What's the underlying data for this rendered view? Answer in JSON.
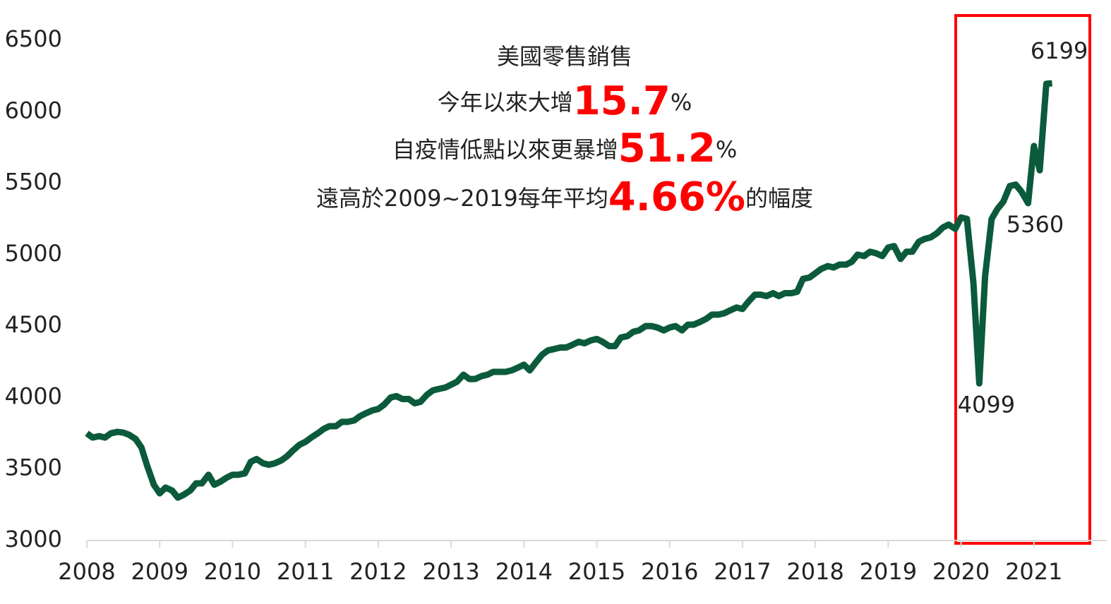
{
  "chart_data": {
    "type": "line",
    "annotation_lines": [
      [
        {
          "text": "美國零售銷售",
          "highlight": false
        }
      ],
      [
        {
          "text": "今年以來大增",
          "highlight": false
        },
        {
          "text": "15.7",
          "highlight": true
        },
        {
          "text": "%",
          "highlight": false
        }
      ],
      [
        {
          "text": "自疫情低點以來更暴增",
          "highlight": false
        },
        {
          "text": "51.2",
          "highlight": true
        },
        {
          "text": "%",
          "highlight": false
        }
      ],
      [
        {
          "text": "遠高於2009~2019每年平均",
          "highlight": false
        },
        {
          "text": "4.66%",
          "highlight": true
        },
        {
          "text": "的幅度",
          "highlight": false
        }
      ]
    ],
    "highlight_color": "#ff0000",
    "x": [
      2008,
      2008.08,
      2008.17,
      2008.25,
      2008.33,
      2008.42,
      2008.5,
      2008.58,
      2008.67,
      2008.75,
      2008.83,
      2008.92,
      2009,
      2009.08,
      2009.17,
      2009.25,
      2009.33,
      2009.42,
      2009.5,
      2009.58,
      2009.67,
      2009.75,
      2009.83,
      2009.92,
      2010,
      2010.08,
      2010.17,
      2010.25,
      2010.33,
      2010.42,
      2010.5,
      2010.58,
      2010.67,
      2010.75,
      2010.83,
      2010.92,
      2011,
      2011.08,
      2011.17,
      2011.25,
      2011.33,
      2011.42,
      2011.5,
      2011.58,
      2011.67,
      2011.75,
      2011.83,
      2011.92,
      2012,
      2012.08,
      2012.17,
      2012.25,
      2012.33,
      2012.42,
      2012.5,
      2012.58,
      2012.67,
      2012.75,
      2012.83,
      2012.92,
      2013,
      2013.08,
      2013.17,
      2013.25,
      2013.33,
      2013.42,
      2013.5,
      2013.58,
      2013.67,
      2013.75,
      2013.83,
      2013.92,
      2014,
      2014.08,
      2014.17,
      2014.25,
      2014.33,
      2014.42,
      2014.5,
      2014.58,
      2014.67,
      2014.75,
      2014.83,
      2014.92,
      2015,
      2015.08,
      2015.17,
      2015.25,
      2015.33,
      2015.42,
      2015.5,
      2015.58,
      2015.67,
      2015.75,
      2015.83,
      2015.92,
      2016,
      2016.08,
      2016.17,
      2016.25,
      2016.33,
      2016.42,
      2016.5,
      2016.58,
      2016.67,
      2016.75,
      2016.83,
      2016.92,
      2017,
      2017.08,
      2017.17,
      2017.25,
      2017.33,
      2017.42,
      2017.5,
      2017.58,
      2017.67,
      2017.75,
      2017.83,
      2017.92,
      2018,
      2018.08,
      2018.17,
      2018.25,
      2018.33,
      2018.42,
      2018.5,
      2018.58,
      2018.67,
      2018.75,
      2018.83,
      2018.92,
      2019,
      2019.08,
      2019.17,
      2019.25,
      2019.33,
      2019.42,
      2019.5,
      2019.58,
      2019.67,
      2019.75,
      2019.83,
      2019.92,
      2020,
      2020.08,
      2020.17,
      2020.25,
      2020.33,
      2020.42,
      2020.5,
      2020.58,
      2020.67,
      2020.75,
      2020.83,
      2020.92,
      2021,
      2021.08,
      2021.17,
      2021.25
    ],
    "series": [
      {
        "color": "#0b5a3b",
        "values": [
          3750,
          3720,
          3730,
          3720,
          3750,
          3760,
          3755,
          3740,
          3710,
          3650,
          3520,
          3390,
          3330,
          3370,
          3350,
          3300,
          3320,
          3350,
          3400,
          3400,
          3460,
          3390,
          3410,
          3440,
          3460,
          3460,
          3470,
          3550,
          3570,
          3540,
          3530,
          3540,
          3560,
          3590,
          3630,
          3670,
          3690,
          3720,
          3750,
          3780,
          3800,
          3800,
          3830,
          3830,
          3840,
          3870,
          3890,
          3910,
          3920,
          3950,
          4000,
          4010,
          3990,
          3990,
          3960,
          3970,
          4020,
          4050,
          4060,
          4070,
          4090,
          4110,
          4160,
          4130,
          4130,
          4150,
          4160,
          4180,
          4180,
          4180,
          4190,
          4210,
          4230,
          4190,
          4250,
          4300,
          4330,
          4340,
          4350,
          4350,
          4370,
          4390,
          4380,
          4400,
          4410,
          4390,
          4360,
          4360,
          4420,
          4430,
          4460,
          4470,
          4500,
          4500,
          4490,
          4470,
          4490,
          4500,
          4470,
          4510,
          4510,
          4530,
          4550,
          4580,
          4580,
          4590,
          4610,
          4630,
          4620,
          4670,
          4720,
          4720,
          4710,
          4730,
          4710,
          4730,
          4730,
          4740,
          4830,
          4840,
          4870,
          4900,
          4920,
          4910,
          4930,
          4930,
          4950,
          5000,
          4990,
          5020,
          5010,
          4990,
          5050,
          5060,
          4970,
          5020,
          5020,
          5090,
          5110,
          5120,
          5150,
          5190,
          5210,
          5180,
          5260,
          5250,
          4800,
          4099,
          4850,
          5250,
          5320,
          5370,
          5480,
          5490,
          5440,
          5360,
          5760,
          5590,
          6195,
          6199
        ]
      }
    ],
    "data_labels": [
      {
        "index": 147,
        "position": "below"
      },
      {
        "index": 155,
        "position": "below"
      },
      {
        "index": 159,
        "position": "above"
      }
    ],
    "xlim": [
      2008,
      2022.0
    ],
    "xticks": [
      2008,
      2009,
      2010,
      2011,
      2012,
      2013,
      2014,
      2015,
      2016,
      2017,
      2018,
      2019,
      2020,
      2021
    ],
    "ylim": [
      3000,
      6500
    ],
    "yticks": [
      3000,
      3500,
      4000,
      4500,
      5000,
      5500,
      6000,
      6500
    ]
  }
}
